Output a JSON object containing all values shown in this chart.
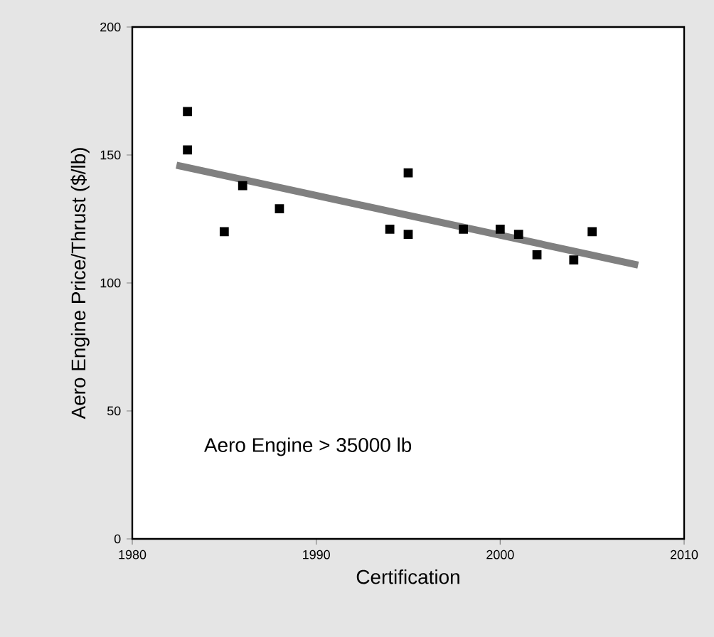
{
  "chart_data": {
    "type": "scatter",
    "xlabel": "Certification",
    "ylabel": "Aero Engine Price/Thrust ($/lb)",
    "annotations": [
      "Aero Engine   > 35000 lb"
    ],
    "xlim": [
      1980,
      2010
    ],
    "ylim": [
      0,
      200
    ],
    "xticks": [
      1980,
      1990,
      2000,
      2010
    ],
    "yticks": [
      0,
      50,
      100,
      150,
      200
    ],
    "grid": false,
    "marker": "square",
    "series": [
      {
        "color": "#000000",
        "x": [
          1983,
          1983,
          1985,
          1986,
          1988,
          1994,
          1995,
          1995,
          1998,
          2000,
          2001,
          2002,
          2004,
          2005
        ],
        "values": [
          167,
          152,
          120,
          138,
          129,
          121,
          143,
          119,
          121,
          121,
          119,
          111,
          109,
          120
        ]
      },
      {
        "type": "line",
        "color": "#808080",
        "line_style": "solid",
        "marker": "none",
        "x": [
          1982.4,
          2007.5
        ],
        "values": [
          146,
          107
        ]
      }
    ]
  }
}
